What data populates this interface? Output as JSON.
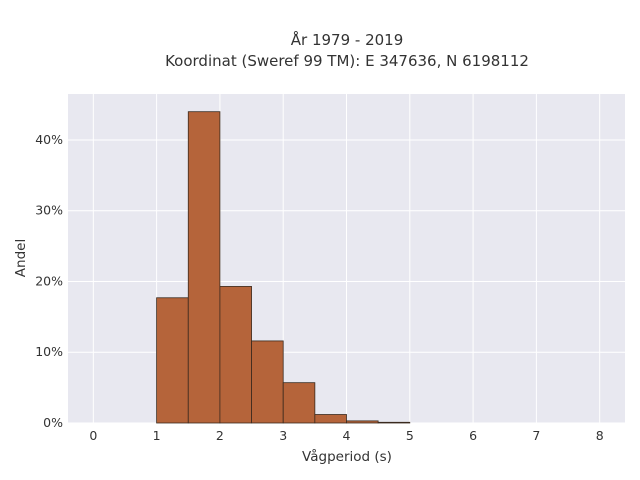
{
  "chart_data": {
    "type": "bar",
    "title_line1": "År 1979 - 2019",
    "title_line2": "Koordinat (Sweref 99 TM): E 347636, N 6198112",
    "xlabel": "Vågperiod (s)",
    "ylabel": "Andel",
    "xlim": [
      -0.4,
      8.4
    ],
    "ylim": [
      0,
      0.465
    ],
    "x_ticks": [
      0,
      1,
      2,
      3,
      4,
      5,
      6,
      7,
      8
    ],
    "y_ticks": [
      0,
      0.1,
      0.2,
      0.3,
      0.4
    ],
    "y_tick_labels": [
      "0%",
      "10%",
      "20%",
      "30%",
      "40%"
    ],
    "bin_width": 0.5,
    "bins": [
      {
        "start": 1.0,
        "end": 1.5,
        "value": 0.177
      },
      {
        "start": 1.5,
        "end": 2.0,
        "value": 0.44
      },
      {
        "start": 2.0,
        "end": 2.5,
        "value": 0.193
      },
      {
        "start": 2.5,
        "end": 3.0,
        "value": 0.116
      },
      {
        "start": 3.0,
        "end": 3.5,
        "value": 0.057
      },
      {
        "start": 3.5,
        "end": 4.0,
        "value": 0.012
      },
      {
        "start": 4.0,
        "end": 4.5,
        "value": 0.003
      },
      {
        "start": 4.5,
        "end": 5.0,
        "value": 0.001
      }
    ],
    "bar_color": "#b5643a",
    "bar_edge_color": "#3a2a1e",
    "plot_background": "#e8e8f0",
    "grid": true,
    "grid_color": "#ffffff",
    "legend": false
  }
}
